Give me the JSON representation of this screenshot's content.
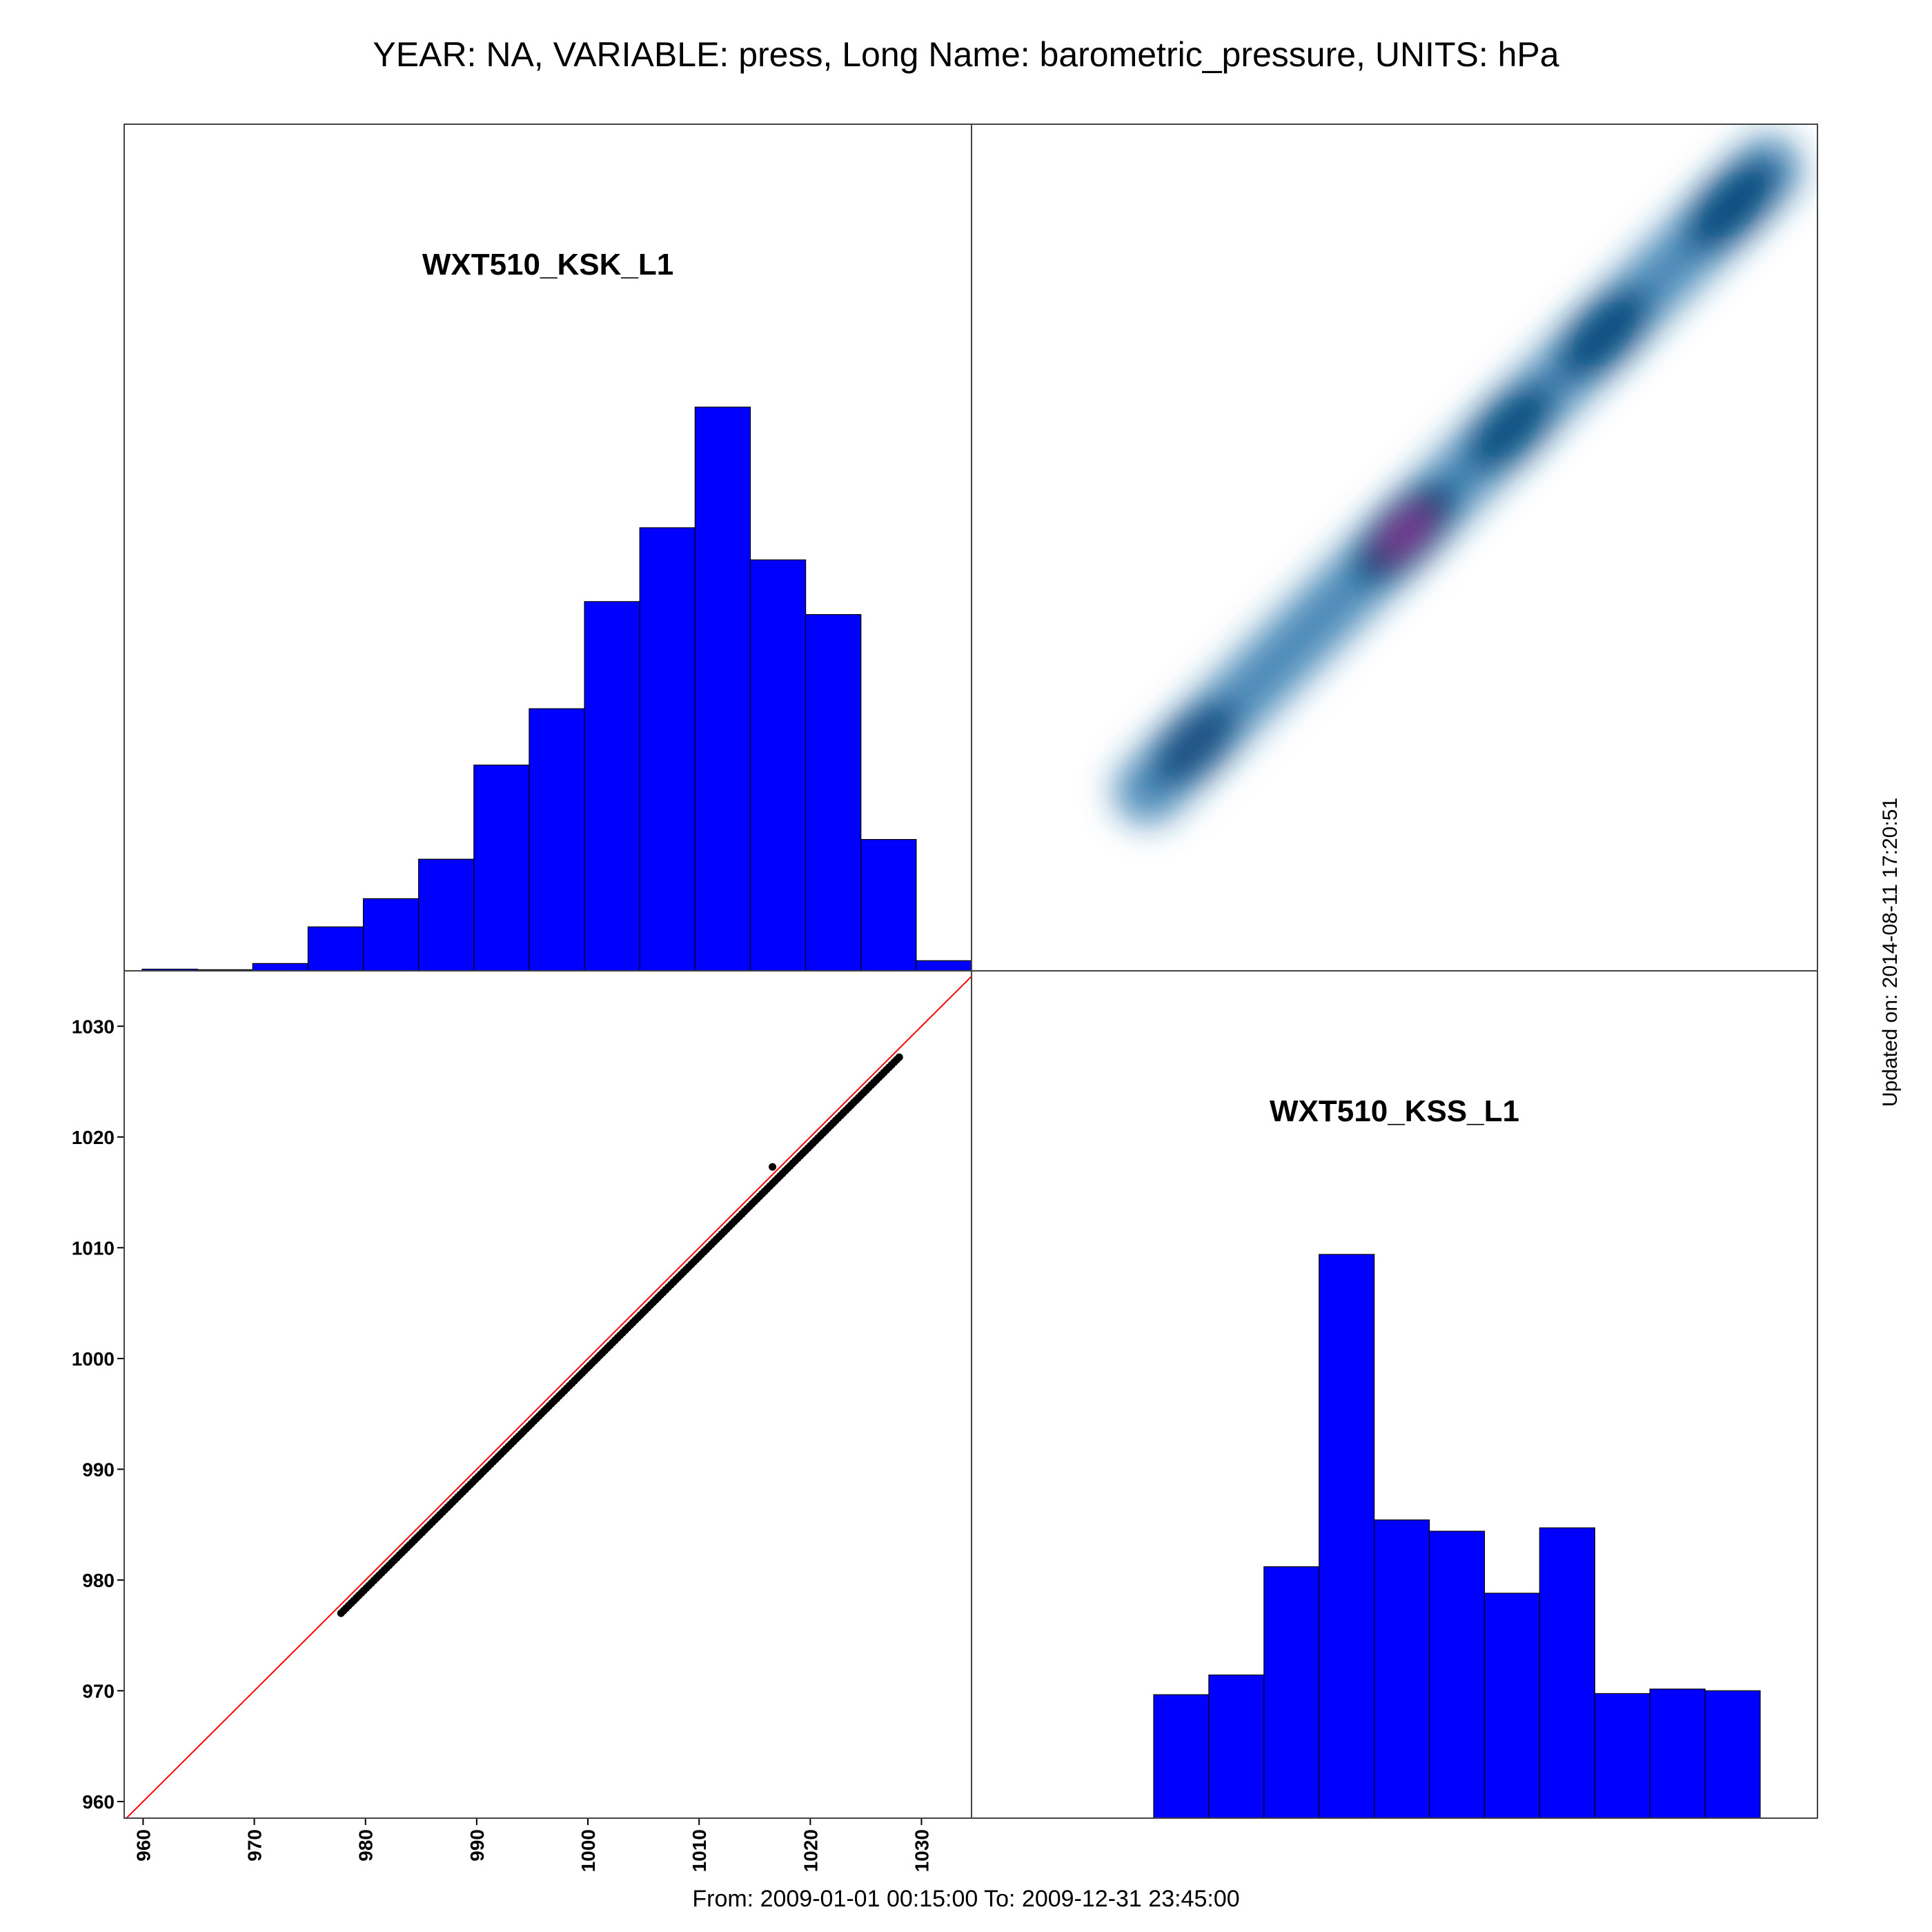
{
  "title": "YEAR: NA, VARIABLE: press, Long Name: barometric_pressure, UNITS: hPa",
  "footer": "From: 2009-01-01 00:15:00 To: 2009-12-31 23:45:00",
  "updated": "Updated on: 2014-08-11 17:20:51",
  "colors": {
    "hist_fill": "#0000ff",
    "hist_edge": "#000000",
    "identity_line": "#ff0000",
    "points": "#000000",
    "density_low": "#ffffff",
    "density_mid": "#1e6fa8",
    "density_high": "#003a6e",
    "density_peak": "#9b2fa0"
  },
  "chart_data": [
    {
      "type": "bar",
      "panel": "top-left",
      "title": "WXT510_KSK_L1",
      "bin_edges": [
        960,
        965,
        970,
        975,
        980,
        985,
        990,
        995,
        1000,
        1005,
        1010,
        1015,
        1020,
        1025,
        1030,
        1035
      ],
      "values": [
        0.3,
        0.2,
        1.3,
        7.8,
        12.8,
        19.8,
        36.5,
        46.5,
        65.5,
        78.6,
        100,
        72.9,
        63.2,
        23.3,
        1.8
      ],
      "ylabel": "",
      "grid": false
    },
    {
      "type": "heatmap",
      "panel": "top-right",
      "title": "",
      "x": "WXT510_KSK_L1",
      "y": "WXT510_KSS_L1",
      "xlim": [
        976,
        1029
      ],
      "ylim": [
        976,
        1029
      ],
      "density_peaks": [
        {
          "x": 980,
          "y": 980,
          "level": 0.55
        },
        {
          "x": 998,
          "y": 998,
          "level": 1.0
        },
        {
          "x": 1007,
          "y": 1007,
          "level": 0.6
        },
        {
          "x": 1015,
          "y": 1015,
          "level": 0.7
        },
        {
          "x": 1026,
          "y": 1026,
          "level": 0.75
        }
      ]
    },
    {
      "type": "scatter",
      "panel": "bottom-left",
      "title": "",
      "xlabel": "",
      "ylabel": "",
      "xlim": [
        958.3,
        1034.5
      ],
      "ylim": [
        958.5,
        1035
      ],
      "xticks": [
        "960",
        "970",
        "980",
        "990",
        "1000",
        "1010",
        "1020",
        "1030"
      ],
      "yticks": [
        "960",
        "970",
        "980",
        "990",
        "1000",
        "1010",
        "1020",
        "1030"
      ],
      "identity_line": true,
      "points_range": {
        "x_min": 977.8,
        "x_max": 1028,
        "offset": -0.8
      },
      "outlier": {
        "x": 1016.6,
        "y": 1017.3
      },
      "grid": false
    },
    {
      "type": "bar",
      "panel": "bottom-right",
      "title": "WXT510_KSS_L1",
      "bin_edges": [
        0,
        1,
        2,
        3,
        4,
        5,
        6,
        7,
        8,
        9,
        10,
        11
      ],
      "values": [
        21.9,
        25.4,
        44.6,
        100,
        52.9,
        50.9,
        39.9,
        51.5,
        22.1,
        22.9,
        22.6
      ],
      "ylabel": "",
      "grid": false
    }
  ]
}
